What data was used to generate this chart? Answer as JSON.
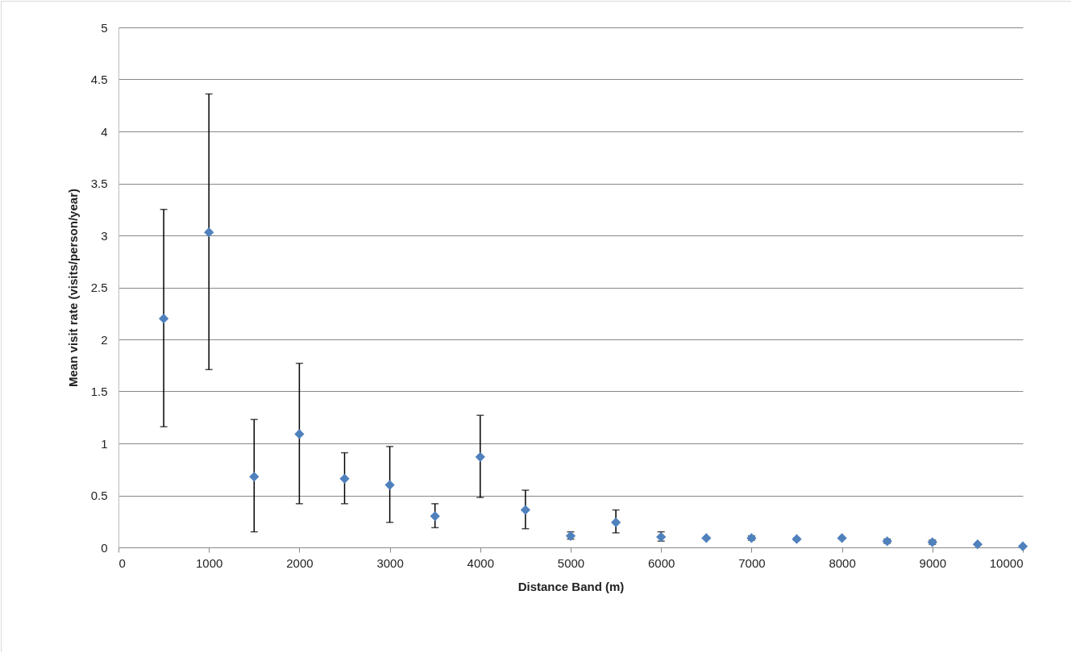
{
  "chart_data": {
    "type": "scatter",
    "xlabel": "Distance Band (m)",
    "ylabel": "Mean visit rate (visits/person/year)",
    "x": [
      500,
      1000,
      1500,
      2000,
      2500,
      3000,
      3500,
      4000,
      4500,
      5000,
      5500,
      6000,
      6500,
      7000,
      7500,
      8000,
      8500,
      9000,
      9500,
      10000
    ],
    "series": [
      {
        "color": "#4f81bd",
        "values": [
          2.2,
          3.03,
          0.68,
          1.09,
          0.66,
          0.6,
          0.3,
          0.87,
          0.36,
          0.11,
          0.24,
          0.1,
          0.09,
          0.09,
          0.08,
          0.09,
          0.06,
          0.05,
          0.03,
          0.01
        ],
        "errors": [
          [
            1.16,
            3.25
          ],
          [
            1.71,
            4.36
          ],
          [
            0.15,
            1.23
          ],
          [
            0.42,
            1.77
          ],
          [
            0.42,
            0.91
          ],
          [
            0.24,
            0.97
          ],
          [
            0.19,
            0.42
          ],
          [
            0.48,
            1.27
          ],
          [
            0.18,
            0.55
          ],
          [
            0.08,
            0.15
          ],
          [
            0.14,
            0.36
          ],
          [
            0.06,
            0.15
          ],
          null,
          [
            0.07,
            0.11
          ],
          [
            0.07,
            0.09
          ],
          null,
          [
            0.04,
            0.08
          ],
          [
            0.03,
            0.07
          ],
          null,
          null
        ]
      }
    ],
    "xlim": [
      0,
      10000
    ],
    "xticks": [
      0,
      1000,
      2000,
      3000,
      4000,
      5000,
      6000,
      7000,
      8000,
      9000,
      10000
    ],
    "ylim": [
      0,
      5
    ],
    "yticks": [
      0,
      0.5,
      1,
      1.5,
      2,
      2.5,
      3,
      3.5,
      4,
      4.5,
      5
    ],
    "grid": "y",
    "marker": "diamond"
  }
}
